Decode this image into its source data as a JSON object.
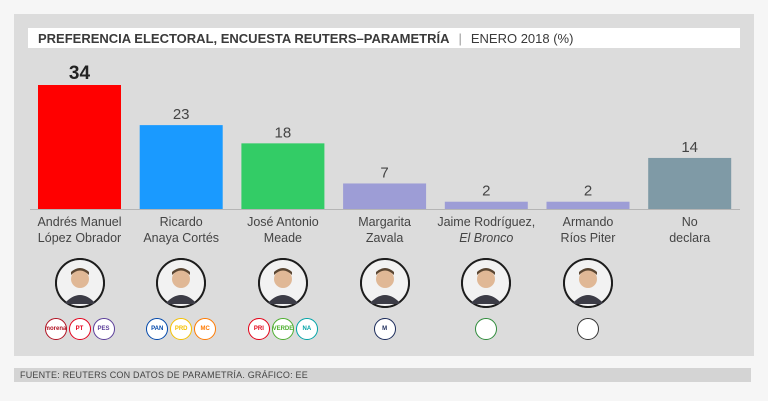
{
  "header": {
    "title": "PREFERENCIA ELECTORAL, ENCUESTA REUTERS–PARAMETRÍA",
    "separator": "|",
    "subtitle": "ENERO 2018 (%)"
  },
  "footer": {
    "source": "FUENTE: REUTERS CON DATOS DE PARAMETRÍA. GRÁFICO: EE"
  },
  "chart_data": {
    "type": "bar",
    "title": "PREFERENCIA ELECTORAL, ENCUESTA REUTERS–PARAMETRÍA",
    "subtitle": "ENERO 2018 (%)",
    "xlabel": "",
    "ylabel": "",
    "ylim": [
      0,
      34
    ],
    "grid": false,
    "categories": [
      [
        "Andrés Manuel",
        "López Obrador"
      ],
      [
        "Ricardo",
        "Anaya Cortés"
      ],
      [
        "José Antonio",
        "Meade"
      ],
      [
        "Margarita",
        "Zavala"
      ],
      [
        "Jaime Rodríguez,",
        "El Bronco"
      ],
      [
        "Armando",
        "Ríos Piter"
      ],
      [
        "No",
        "declara"
      ]
    ],
    "values": [
      34,
      23,
      18,
      7,
      2,
      2,
      14
    ],
    "colors": [
      "#ff0000",
      "#1a9aff",
      "#33cc66",
      "#9d9dd6",
      "#9d9dd6",
      "#9d9dd6",
      "#7f9aa6"
    ],
    "highlight_index": 0
  },
  "candidates": [
    {
      "icon": "amlo-portrait-icon",
      "logos": [
        {
          "icon": "morena-logo-icon",
          "text": "morena",
          "color": "#b01020"
        },
        {
          "icon": "pt-logo-icon",
          "text": "PT",
          "color": "#e3001b"
        },
        {
          "icon": "pes-logo-icon",
          "text": "PES",
          "color": "#5a3d99"
        }
      ]
    },
    {
      "icon": "anaya-portrait-icon",
      "logos": [
        {
          "icon": "pan-logo-icon",
          "text": "PAN",
          "color": "#0047ab"
        },
        {
          "icon": "prd-logo-icon",
          "text": "PRD",
          "color": "#f5c000"
        },
        {
          "icon": "mc-logo-icon",
          "text": "MC",
          "color": "#ff7a00"
        }
      ]
    },
    {
      "icon": "meade-portrait-icon",
      "logos": [
        {
          "icon": "pri-logo-icon",
          "text": "PRI",
          "color": "#e30016"
        },
        {
          "icon": "pvem-logo-icon",
          "text": "VERDE",
          "color": "#4cae2e"
        },
        {
          "icon": "panal-logo-icon",
          "text": "NA",
          "color": "#00a3a6"
        }
      ]
    },
    {
      "icon": "zavala-portrait-icon",
      "logos": [
        {
          "icon": "zavala-m-logo-icon",
          "text": "M",
          "color": "#1a2a5a"
        }
      ]
    },
    {
      "icon": "bronco-portrait-icon",
      "logos": [
        {
          "icon": "bronco-horse-logo-icon",
          "text": "",
          "color": "#2e8b3a"
        }
      ]
    },
    {
      "icon": "rios-piter-portrait-icon",
      "logos": [
        {
          "icon": "rios-piter-logo-icon",
          "text": "",
          "color": "#333333"
        }
      ]
    },
    {
      "icon": "",
      "logos": []
    }
  ]
}
